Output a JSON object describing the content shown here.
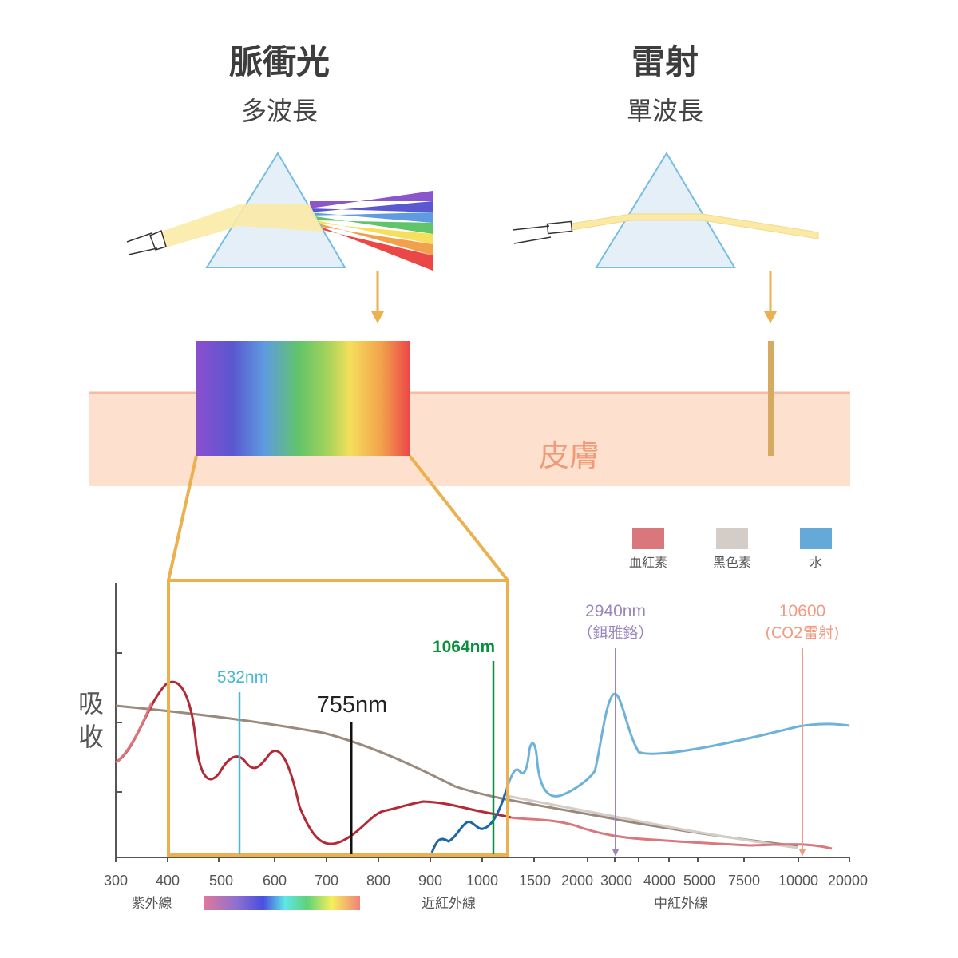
{
  "top": {
    "left_title": "脈衝光",
    "left_subtitle": "多波長",
    "right_title": "雷射",
    "right_subtitle": "單波長"
  },
  "skin_label": "皮膚",
  "y_label_line1": "吸",
  "y_label_line2": "收",
  "legend": [
    {
      "label": "血紅素",
      "color": "#d9777d"
    },
    {
      "label": "黑色素",
      "color": "#d4ccc6"
    },
    {
      "label": "水",
      "color": "#64a9d8"
    }
  ],
  "markers": {
    "m532": "532nm",
    "m755": "755nm",
    "m1064": "1064nm",
    "m2940": "2940nm",
    "m2940_sub": "（鉺雅鉻）",
    "m10600": "10600",
    "m10600_sub": "(CO2雷射)"
  },
  "x_ticks": [
    "300",
    "400",
    "500",
    "600",
    "700",
    "800",
    "900",
    "1000",
    "1500",
    "2000",
    "3000",
    "4000",
    "5000",
    "7500",
    "10000",
    "20000"
  ],
  "bands": {
    "uv": "紫外線",
    "nir": "近紅外線",
    "mir": "中紅外線"
  },
  "colors": {
    "accent": "#ecb04f",
    "skin": "#fde0cd",
    "skin_text": "#ef9a78",
    "hemoglobin": "#b22a35",
    "melanin": "#9b8a7c",
    "water": "#6eb2da",
    "c532": "#4ab8d0",
    "c1064": "#0b8f3c",
    "c2940": "#9b85bd",
    "c10600": "#ef9c82"
  }
}
